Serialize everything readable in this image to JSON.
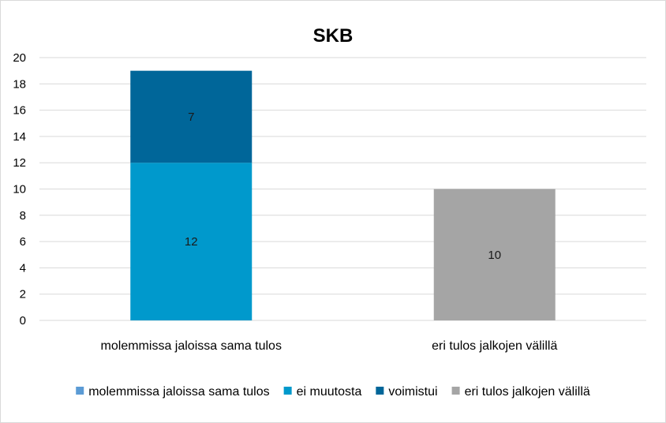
{
  "chart_data": {
    "type": "bar",
    "stacked": true,
    "title": "SKB",
    "xlabel": "",
    "ylabel": "",
    "ylim": [
      0,
      20
    ],
    "yticks": [
      0,
      2,
      4,
      6,
      8,
      10,
      12,
      14,
      16,
      18,
      20
    ],
    "grid": true,
    "legend_position": "bottom",
    "categories": [
      "molemmissa jaloissa sama tulos",
      "eri tulos jalkojen välillä"
    ],
    "series": [
      {
        "name": "molemmissa jaloissa sama tulos",
        "color": "#5B9BD5",
        "values": [
          0,
          0
        ]
      },
      {
        "name": "ei muutosta",
        "color": "#0099CC",
        "values": [
          12,
          0
        ]
      },
      {
        "name": "voimistui",
        "color": "#006699",
        "values": [
          7,
          0
        ]
      },
      {
        "name": "eri tulos jalkojen välillä",
        "color": "#A5A5A5",
        "values": [
          0,
          10
        ]
      }
    ]
  }
}
